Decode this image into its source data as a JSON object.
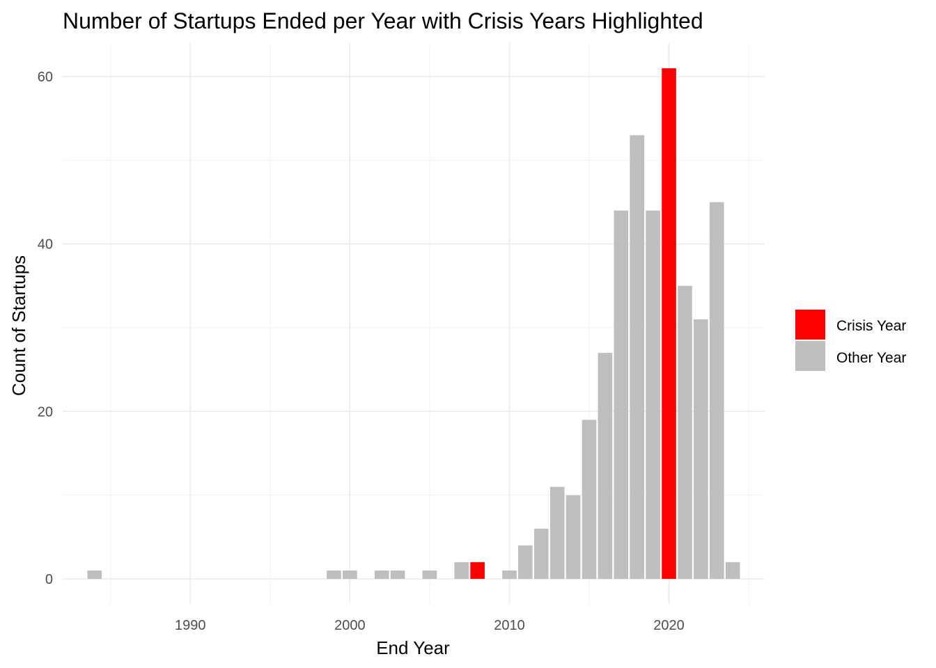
{
  "chart_data": {
    "type": "bar",
    "title": "Number of Startups Ended per Year with Crisis Years Highlighted",
    "xlabel": "End Year",
    "ylabel": "Count of Startups",
    "xlim": [
      1982,
      2026
    ],
    "ylim": [
      -3,
      64
    ],
    "x_ticks": [
      1990,
      2000,
      2010,
      2020
    ],
    "y_ticks": [
      0,
      20,
      40,
      60
    ],
    "grid": true,
    "legend_position": "right",
    "legend": [
      {
        "key": "crisis",
        "label": "Crisis Year",
        "color": "#ff0000"
      },
      {
        "key": "other",
        "label": "Other Year",
        "color": "#bebebe"
      }
    ],
    "bars": [
      {
        "year": 1984,
        "count": 1,
        "group": "other"
      },
      {
        "year": 1999,
        "count": 1,
        "group": "other"
      },
      {
        "year": 2000,
        "count": 1,
        "group": "other"
      },
      {
        "year": 2002,
        "count": 1,
        "group": "other"
      },
      {
        "year": 2003,
        "count": 1,
        "group": "other"
      },
      {
        "year": 2005,
        "count": 1,
        "group": "other"
      },
      {
        "year": 2007,
        "count": 2,
        "group": "other"
      },
      {
        "year": 2008,
        "count": 2,
        "group": "crisis"
      },
      {
        "year": 2010,
        "count": 1,
        "group": "other"
      },
      {
        "year": 2011,
        "count": 4,
        "group": "other"
      },
      {
        "year": 2012,
        "count": 6,
        "group": "other"
      },
      {
        "year": 2013,
        "count": 11,
        "group": "other"
      },
      {
        "year": 2014,
        "count": 10,
        "group": "other"
      },
      {
        "year": 2015,
        "count": 19,
        "group": "other"
      },
      {
        "year": 2016,
        "count": 27,
        "group": "other"
      },
      {
        "year": 2017,
        "count": 44,
        "group": "other"
      },
      {
        "year": 2018,
        "count": 53,
        "group": "other"
      },
      {
        "year": 2019,
        "count": 44,
        "group": "other"
      },
      {
        "year": 2020,
        "count": 61,
        "group": "crisis"
      },
      {
        "year": 2021,
        "count": 35,
        "group": "other"
      },
      {
        "year": 2022,
        "count": 31,
        "group": "other"
      },
      {
        "year": 2023,
        "count": 45,
        "group": "other"
      },
      {
        "year": 2024,
        "count": 2,
        "group": "other"
      }
    ]
  }
}
